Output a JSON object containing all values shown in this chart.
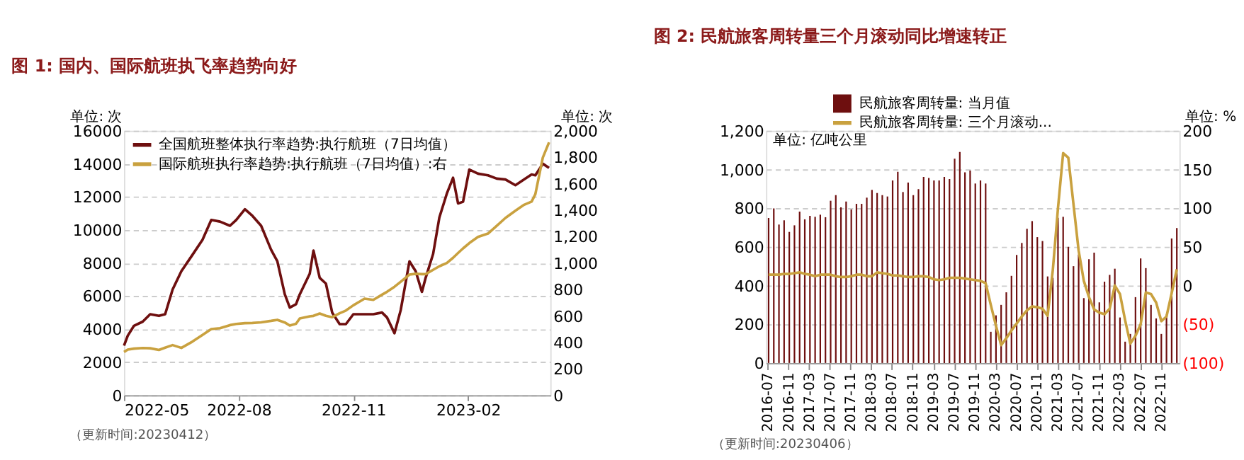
{
  "chart_data": [
    {
      "type": "line",
      "title": "图 1: 国内、国际航班执飞率趋势向好",
      "ylabel": "单位: 次",
      "y2label": "单位: 次",
      "legend": "top left",
      "grid": "y",
      "annotations": [
        "（更新时间:20230412）"
      ],
      "x": [
        "2022-05-01",
        "2022-05-04",
        "2022-05-09",
        "2022-05-16",
        "2022-05-22",
        "2022-05-29",
        "2022-06-03",
        "2022-06-09",
        "2022-06-16",
        "2022-06-25",
        "2022-07-03",
        "2022-07-10",
        "2022-07-17",
        "2022-07-25",
        "2022-07-30",
        "2022-08-06",
        "2022-08-12",
        "2022-08-19",
        "2022-08-27",
        "2022-09-01",
        "2022-09-07",
        "2022-09-11",
        "2022-09-16",
        "2022-09-19",
        "2022-09-27",
        "2022-09-30",
        "2022-10-05",
        "2022-10-10",
        "2022-10-15",
        "2022-10-21",
        "2022-10-26",
        "2022-11-01",
        "2022-11-10",
        "2022-11-17",
        "2022-11-24",
        "2022-11-28",
        "2022-12-04",
        "2022-12-09",
        "2022-12-16",
        "2022-12-21",
        "2022-12-26",
        "2022-12-29",
        "2023-01-04",
        "2023-01-09",
        "2023-01-15",
        "2023-01-20",
        "2023-01-24",
        "2023-01-28",
        "2023-02-02",
        "2023-02-09",
        "2023-02-17",
        "2023-02-24",
        "2023-03-03",
        "2023-03-11",
        "2023-03-18",
        "2023-03-24",
        "2023-03-27",
        "2023-04-02",
        "2023-04-07"
      ],
      "xlim": [
        "2022-05-01",
        "2023-04-08"
      ],
      "xticks": [
        "2022-05",
        "2022-08",
        "2022-11",
        "2023-02"
      ],
      "ylim": [
        0,
        16000
      ],
      "yticks": [
        0,
        2000,
        4000,
        6000,
        8000,
        10000,
        12000,
        14000,
        16000
      ],
      "y2lim": [
        0,
        2000
      ],
      "y2ticks": [
        0,
        200,
        400,
        600,
        800,
        {
          "value": 1000,
          "label": "1,000"
        },
        {
          "value": 1200,
          "label": "1,200"
        },
        {
          "value": 1400,
          "label": "1,400"
        },
        {
          "value": 1600,
          "label": "1,600"
        },
        {
          "value": 1800,
          "label": "1,800"
        },
        {
          "value": 2000,
          "label": "2,000"
        }
      ],
      "series": [
        {
          "name": "全国航班整体执行率趋势:执行航班（7日均值）",
          "color": "#6e0f0f",
          "values": [
            3000,
            3600,
            4200,
            4450,
            4900,
            4800,
            4900,
            6400,
            7500,
            8500,
            9400,
            10600,
            10500,
            10250,
            10600,
            11250,
            10850,
            10250,
            8800,
            8100,
            6100,
            5300,
            5500,
            6100,
            7350,
            8750,
            7100,
            6750,
            5000,
            4300,
            4300,
            4900,
            4900,
            4900,
            5000,
            4700,
            3750,
            5150,
            8100,
            7500,
            6250,
            7100,
            8550,
            10750,
            12200,
            13150,
            11600,
            11700,
            13650,
            13400,
            13300,
            13100,
            13050,
            12700,
            13050,
            13350,
            13300,
            14000,
            13750
          ]
        },
        {
          "name": "国际航班执行率趋势:执行航班（7日均值）:右",
          "color": "#c9a13f",
          "axis": "y2",
          "values": [
            327,
            345,
            352,
            357,
            355,
            342,
            360,
            379,
            358,
            406,
            456,
            500,
            507,
            530,
            539,
            545,
            546,
            551,
            562,
            570,
            550,
            527,
            540,
            580,
            596,
            600,
            618,
            600,
            590,
            620,
            640,
            680,
            730,
            721,
            760,
            782,
            820,
            858,
            912,
            918,
            915,
            915,
            948,
            975,
            1000,
            1039,
            1075,
            1110,
            1150,
            1197,
            1222,
            1280,
            1340,
            1395,
            1440,
            1464,
            1520,
            1797,
            1912
          ]
        }
      ]
    },
    {
      "type": "bar",
      "title": "图 2: 民航旅客周转量三个月滚动同比增速转正",
      "ylabel": "单位: 亿吨公里",
      "y2label": "单位: %",
      "legend": "top",
      "grid": "y",
      "annotations": [
        "（更新时间:20230406）"
      ],
      "categories": [
        "2016-07",
        null,
        null,
        null,
        "2016-11",
        null,
        null,
        null,
        "2017-03",
        null,
        null,
        null,
        "2017-07",
        null,
        null,
        null,
        "2017-11",
        null,
        null,
        null,
        "2018-03",
        null,
        null,
        null,
        "2018-07",
        null,
        null,
        null,
        "2018-11",
        null,
        null,
        null,
        "2019-03",
        null,
        null,
        null,
        "2019-07",
        null,
        null,
        null,
        "2019-11",
        null,
        null,
        null,
        "2020-03",
        null,
        null,
        null,
        "2020-07",
        null,
        null,
        null,
        "2020-11",
        null,
        null,
        null,
        "2021-03",
        null,
        null,
        null,
        "2021-07",
        null,
        null,
        null,
        "2021-11",
        null,
        null,
        null,
        "2022-03",
        null,
        null,
        null,
        "2022-07",
        null,
        null,
        null,
        "2022-11",
        null,
        null,
        null
      ],
      "ylim": [
        0,
        1200
      ],
      "yticks": [
        0,
        200,
        400,
        600,
        800,
        {
          "value": 1000,
          "label": "1,000"
        },
        {
          "value": 1200,
          "label": "1,200"
        }
      ],
      "y2lim": [
        -100,
        200
      ],
      "y2ticks": [
        {
          "value": -100,
          "label": "(100)"
        },
        {
          "value": -50,
          "label": "(50)"
        },
        0,
        50,
        100,
        150,
        200
      ],
      "series": [
        {
          "name": "民航旅客周转量: 当月值",
          "color": "#6e0f0f",
          "values": [
            749,
            798,
            715,
            737,
            677,
            711,
            782,
            742,
            760,
            755,
            766,
            753,
            838,
            867,
            804,
            834,
            793,
            822,
            822,
            854,
            894,
            878,
            867,
            860,
            943,
            988,
            883,
            932,
            867,
            898,
            961,
            956,
            943,
            943,
            961,
            950,
            1055,
            1090,
            985,
            994,
            927,
            943,
            927,
            161,
            246,
            300,
            365,
            450,
            558,
            620,
            693,
            733,
            650,
            630,
            447,
            440,
            750,
            755,
            600,
            500,
            560,
            335,
            536,
            570,
            313,
            420,
            455,
            487,
            235,
            110,
            150,
            340,
            540,
            490,
            300,
            230,
            150,
            250,
            643,
            697
          ]
        },
        {
          "name": "民航旅客周转量: 三个月滚动...",
          "color": "#c9a13f",
          "type": "line",
          "axis": "y2",
          "values": [
            14,
            14,
            14,
            15,
            15,
            16,
            17,
            15,
            14,
            12,
            14,
            14,
            14,
            12,
            11,
            11,
            12,
            14,
            14,
            12,
            12,
            17,
            16,
            15,
            13,
            13,
            12,
            11,
            11,
            12,
            12,
            11,
            8,
            7,
            8,
            10,
            10,
            10,
            9,
            8,
            7,
            6,
            3,
            -25,
            -52,
            -77,
            -68,
            -58,
            -49,
            -40,
            -32,
            -27,
            -28,
            -30,
            -39,
            20,
            100,
            171,
            165,
            105,
            45,
            6,
            -15,
            -31,
            -35,
            -37,
            -30,
            0,
            -11,
            -45,
            -75,
            -65,
            -50,
            -9,
            -11,
            -22,
            -46,
            -40,
            -10,
            21
          ]
        }
      ]
    }
  ]
}
